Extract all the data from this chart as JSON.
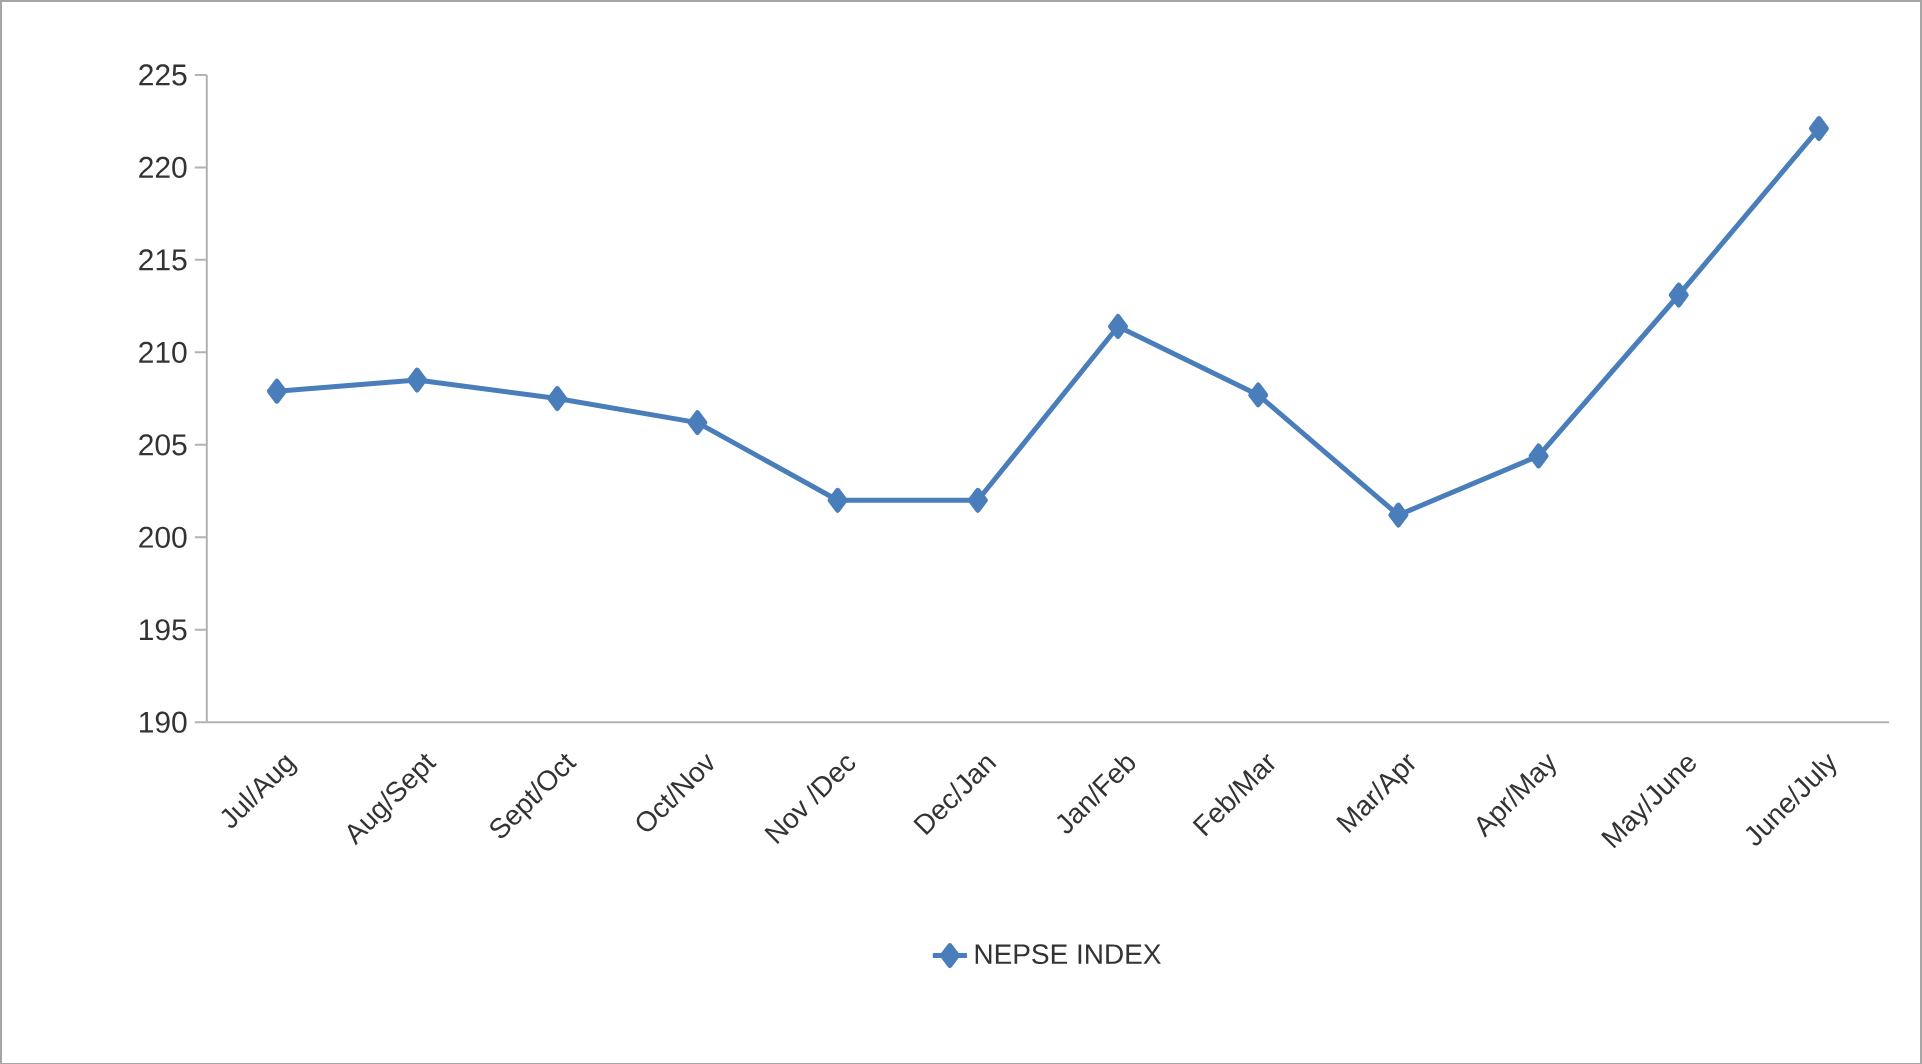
{
  "chart_data": {
    "type": "line",
    "categories": [
      "Jul/Aug",
      "Aug/Sept",
      "Sept/Oct",
      "Oct/Nov",
      "Nov /Dec",
      "Dec/Jan",
      "Jan/Feb",
      "Feb/Mar",
      "Mar/Apr",
      "Apr/May",
      "May/June",
      "June/July"
    ],
    "series": [
      {
        "name": "NEPSE INDEX",
        "color": "#4a7ebb",
        "values": [
          207.9,
          208.5,
          207.5,
          206.2,
          202.0,
          202.0,
          211.4,
          207.7,
          201.2,
          204.4,
          213.1,
          222.1
        ]
      }
    ],
    "ylim": [
      190,
      225
    ],
    "yticks": [
      190,
      195,
      200,
      205,
      210,
      215,
      220,
      225
    ],
    "grid": false,
    "legend": "bottom",
    "marker": "diamond",
    "line_style": "solid"
  }
}
